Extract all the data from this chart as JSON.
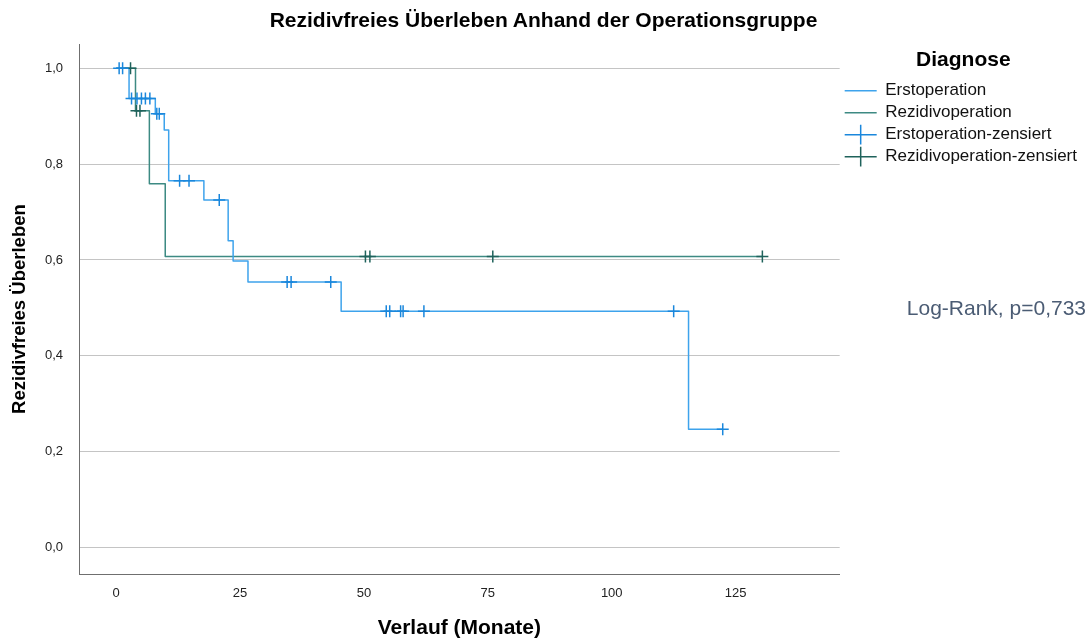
{
  "chart_data": {
    "type": "step",
    "title": "Rezidivfreies Überleben Anhand der Operationsgruppe",
    "xlabel": "Verlauf (Monate)",
    "ylabel": "Rezidivfreies Überleben",
    "legend_title": "Diagnose",
    "annotations": [
      "Log-Rank, p=0,733"
    ],
    "xlim": [
      -7.5,
      146
    ],
    "xticks": [
      0,
      25,
      50,
      75,
      100,
      125
    ],
    "ylim": [
      -0.055,
      1.05
    ],
    "yticks": [
      {
        "value": 0,
        "label": "0,0"
      },
      {
        "value": 0.2,
        "label": "0,2"
      },
      {
        "value": 0.4,
        "label": "0,4"
      },
      {
        "value": 0.6,
        "label": "0,6"
      },
      {
        "value": 0.8,
        "label": "0,8"
      },
      {
        "value": 1,
        "label": "1,0"
      }
    ],
    "grid": "y",
    "legend": "top right",
    "series": [
      {
        "name": "Erstoperation",
        "color": "#3ea3ec",
        "x": [
          0,
          2.6,
          7.9,
          9.7,
          10.6,
          17.7,
          22.6,
          23.6,
          26.6,
          45.4,
          115.5,
          122.4
        ],
        "values": [
          1,
          0.937,
          0.905,
          0.871,
          0.765,
          0.725,
          0.64,
          0.598,
          0.554,
          0.493,
          0.247,
          0.247
        ]
      },
      {
        "name": "Rezidivoperation",
        "color": "#3d8a83",
        "x": [
          0,
          3.9,
          6.7,
          9.9,
          130.4
        ],
        "values": [
          1,
          0.911,
          0.759,
          0.607,
          0.607
        ]
      },
      {
        "name": "Erstoperation-zensiert",
        "type": "scatter",
        "marker": "cross",
        "color": "#1a87dc",
        "x": [
          0.6,
          1.3,
          3.1,
          4.2,
          5.1,
          5.9,
          6.8,
          8.2,
          8.7,
          12.8,
          14.7,
          20.8,
          34.5,
          35.3,
          43.3,
          54.5,
          55.2,
          57.4,
          57.9,
          62.1,
          112.5,
          122.4
        ],
        "values": [
          1,
          1,
          0.937,
          0.937,
          0.937,
          0.937,
          0.937,
          0.905,
          0.905,
          0.765,
          0.765,
          0.725,
          0.554,
          0.554,
          0.554,
          0.493,
          0.493,
          0.493,
          0.493,
          0.493,
          0.493,
          0.247
        ]
      },
      {
        "name": "Rezidivoperation-zensiert",
        "type": "scatter",
        "marker": "cross",
        "color": "#1f625b",
        "x": [
          2.9,
          4.1,
          4.8,
          50.3,
          51.2,
          76.0,
          130.4
        ],
        "values": [
          1,
          0.911,
          0.911,
          0.607,
          0.607,
          0.607,
          0.607
        ]
      }
    ]
  }
}
